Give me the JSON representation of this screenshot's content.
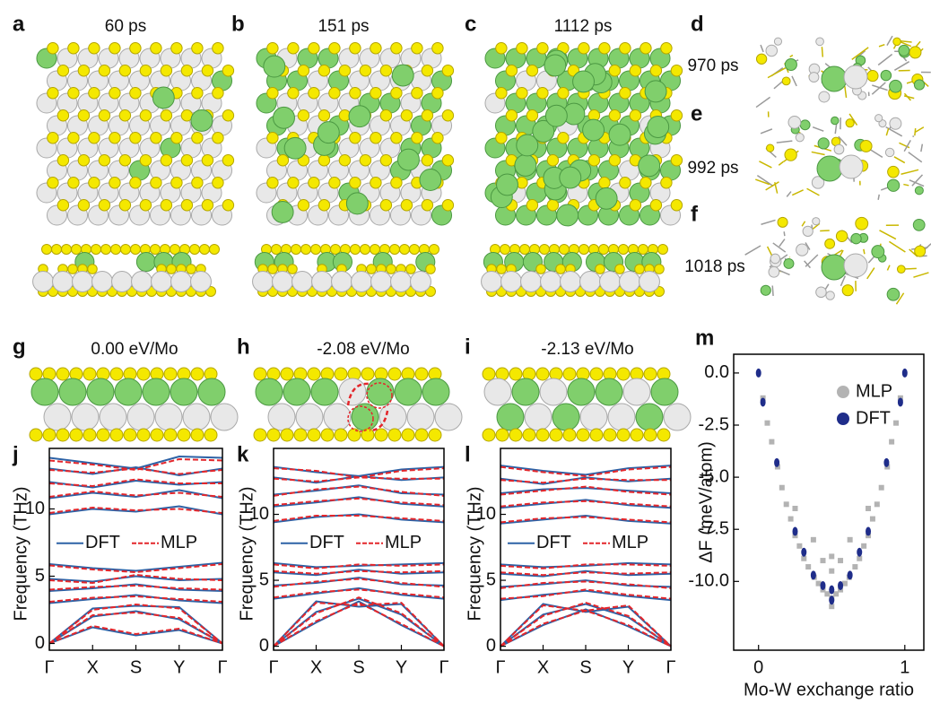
{
  "panels": [
    {
      "label": "a",
      "caption": "60 ps"
    },
    {
      "label": "b",
      "caption": "151 ps"
    },
    {
      "label": "c",
      "caption": "1112 ps"
    },
    {
      "label": "d",
      "caption": "970 ps"
    },
    {
      "label": "e",
      "caption": "992 ps"
    },
    {
      "label": "f",
      "caption": "1018 ps"
    },
    {
      "label": "g",
      "caption": "0.00 eV/Mo"
    },
    {
      "label": "h",
      "caption": "-2.08 eV/Mo"
    },
    {
      "label": "i",
      "caption": "-2.13 eV/Mo"
    },
    {
      "label": "j"
    },
    {
      "label": "k"
    },
    {
      "label": "l"
    },
    {
      "label": "m"
    }
  ],
  "chart_data": [
    {
      "type": "line",
      "ylabel": "Frequency (THz)",
      "x": [
        0,
        1,
        2,
        3,
        4
      ],
      "xlim": [
        0,
        4
      ],
      "xticks": [
        {
          "value": 0,
          "label": "Γ"
        },
        {
          "value": 1,
          "label": "X"
        },
        {
          "value": 2,
          "label": "S"
        },
        {
          "value": 3,
          "label": "Y"
        },
        {
          "value": 4,
          "label": "Γ"
        }
      ],
      "ylim": [
        -0.5,
        14.5
      ],
      "yticks": [
        0,
        5,
        10
      ],
      "series": [
        {
          "name": "DFT",
          "color": "#2d62a6",
          "line_style": "solid",
          "values": [
            [
              0,
              1.2,
              0.6,
              1.0,
              0
            ],
            [
              0,
              2.0,
              2.4,
              1.8,
              0
            ],
            [
              0,
              2.6,
              2.8,
              2.7,
              0
            ],
            [
              3.0,
              3.3,
              3.6,
              3.2,
              3.0
            ],
            [
              3.9,
              4.1,
              4.4,
              4.0,
              3.9
            ],
            [
              4.8,
              4.6,
              5.0,
              4.7,
              4.8
            ],
            [
              5.9,
              5.6,
              5.4,
              5.7,
              6.0
            ],
            [
              9.6,
              10.0,
              9.8,
              10.2,
              9.6
            ],
            [
              10.8,
              11.2,
              10.9,
              11.4,
              10.8
            ],
            [
              12.0,
              11.6,
              12.1,
              11.8,
              12.0
            ],
            [
              13.0,
              12.6,
              13.1,
              12.5,
              13.0
            ],
            [
              13.8,
              13.4,
              13.0,
              13.9,
              13.8
            ]
          ]
        },
        {
          "name": "MLP",
          "color": "#e3262b",
          "line_style": "dashed",
          "values": [
            [
              0,
              1.3,
              0.7,
              1.1,
              0
            ],
            [
              0,
              2.1,
              2.3,
              1.9,
              0
            ],
            [
              0,
              2.5,
              2.9,
              2.6,
              0
            ],
            [
              3.1,
              3.4,
              3.5,
              3.3,
              3.1
            ],
            [
              4.0,
              4.2,
              4.3,
              4.1,
              4.0
            ],
            [
              4.7,
              4.5,
              5.1,
              4.8,
              4.7
            ],
            [
              5.8,
              5.5,
              5.3,
              5.6,
              5.9
            ],
            [
              9.7,
              10.1,
              9.9,
              10.0,
              9.7
            ],
            [
              10.9,
              11.3,
              11.0,
              11.2,
              10.9
            ],
            [
              11.9,
              11.7,
              12.2,
              11.9,
              11.9
            ],
            [
              12.9,
              12.7,
              13.0,
              12.6,
              12.9
            ],
            [
              13.6,
              13.3,
              12.9,
              13.7,
              13.6
            ]
          ]
        }
      ]
    },
    {
      "type": "line",
      "ylabel": "Frequency (THz)",
      "x": [
        0,
        1,
        2,
        3,
        4
      ],
      "xlim": [
        0,
        4
      ],
      "xticks": [
        {
          "value": 0,
          "label": "Γ"
        },
        {
          "value": 1,
          "label": "X"
        },
        {
          "value": 2,
          "label": "S"
        },
        {
          "value": 3,
          "label": "Y"
        },
        {
          "value": 4,
          "label": "Γ"
        }
      ],
      "ylim": [
        -0.3,
        15
      ],
      "yticks": [
        0,
        5,
        10
      ],
      "series": [
        {
          "name": "DFT",
          "color": "#2d62a6",
          "line_style": "solid",
          "values": [
            [
              0,
              1.8,
              3.4,
              1.6,
              0
            ],
            [
              0,
              2.6,
              3.6,
              2.4,
              0
            ],
            [
              0,
              3.4,
              3.0,
              3.2,
              0
            ],
            [
              3.6,
              4.0,
              4.4,
              3.9,
              3.6
            ],
            [
              4.6,
              4.8,
              5.2,
              4.7,
              4.6
            ],
            [
              5.6,
              5.4,
              5.8,
              5.5,
              5.6
            ],
            [
              6.3,
              6.0,
              6.1,
              6.2,
              6.3
            ],
            [
              9.4,
              9.8,
              10.0,
              9.6,
              9.4
            ],
            [
              10.6,
              10.9,
              11.3,
              10.8,
              10.6
            ],
            [
              11.5,
              11.8,
              12.2,
              11.6,
              11.5
            ],
            [
              12.8,
              12.4,
              12.9,
              12.6,
              12.8
            ],
            [
              13.6,
              13.2,
              12.9,
              13.4,
              13.6
            ]
          ]
        },
        {
          "name": "MLP",
          "color": "#e3262b",
          "line_style": "dashed",
          "values": [
            [
              0,
              1.9,
              3.3,
              1.7,
              0
            ],
            [
              0,
              2.5,
              3.7,
              2.5,
              0
            ],
            [
              0,
              3.3,
              3.1,
              3.3,
              0
            ],
            [
              3.7,
              4.1,
              4.3,
              4.0,
              3.7
            ],
            [
              4.5,
              4.9,
              5.1,
              4.8,
              4.5
            ],
            [
              5.7,
              5.5,
              5.7,
              5.6,
              5.7
            ],
            [
              6.2,
              5.9,
              6.2,
              6.1,
              6.2
            ],
            [
              9.5,
              9.9,
              9.9,
              9.7,
              9.5
            ],
            [
              10.7,
              11.0,
              11.2,
              10.9,
              10.7
            ],
            [
              11.4,
              11.9,
              12.1,
              11.7,
              11.4
            ],
            [
              12.7,
              12.5,
              12.8,
              12.7,
              12.7
            ],
            [
              13.5,
              13.3,
              12.8,
              13.3,
              13.5
            ]
          ]
        }
      ]
    },
    {
      "type": "line",
      "ylabel": "Frequency (THz)",
      "x": [
        0,
        1,
        2,
        3,
        4
      ],
      "xlim": [
        0,
        4
      ],
      "xticks": [
        {
          "value": 0,
          "label": "Γ"
        },
        {
          "value": 1,
          "label": "X"
        },
        {
          "value": 2,
          "label": "S"
        },
        {
          "value": 3,
          "label": "Y"
        },
        {
          "value": 4,
          "label": "Γ"
        }
      ],
      "ylim": [
        -0.3,
        15
      ],
      "yticks": [
        0,
        5,
        10
      ],
      "series": [
        {
          "name": "DFT",
          "color": "#2d62a6",
          "line_style": "solid",
          "values": [
            [
              0,
              1.6,
              2.8,
              1.5,
              0
            ],
            [
              0,
              2.4,
              3.2,
              2.2,
              0
            ],
            [
              0,
              3.2,
              2.6,
              3.0,
              0
            ],
            [
              3.5,
              3.9,
              4.2,
              3.8,
              3.5
            ],
            [
              4.5,
              4.7,
              5.0,
              4.6,
              4.5
            ],
            [
              5.5,
              5.3,
              5.7,
              5.4,
              5.5
            ],
            [
              6.2,
              6.0,
              6.1,
              6.3,
              6.2
            ],
            [
              9.3,
              9.6,
              9.9,
              9.5,
              9.3
            ],
            [
              10.5,
              10.8,
              11.1,
              10.7,
              10.5
            ],
            [
              11.6,
              11.9,
              12.0,
              11.8,
              11.6
            ],
            [
              12.7,
              12.3,
              12.8,
              12.5,
              12.7
            ],
            [
              13.7,
              13.3,
              13.0,
              13.5,
              13.7
            ]
          ]
        },
        {
          "name": "MLP",
          "color": "#e3262b",
          "line_style": "dashed",
          "values": [
            [
              0,
              1.7,
              2.7,
              1.6,
              0
            ],
            [
              0,
              2.3,
              3.3,
              2.3,
              0
            ],
            [
              0,
              3.1,
              2.7,
              3.1,
              0
            ],
            [
              3.6,
              3.8,
              4.3,
              3.9,
              3.6
            ],
            [
              4.4,
              4.8,
              4.9,
              4.7,
              4.4
            ],
            [
              5.6,
              5.4,
              5.6,
              5.5,
              5.6
            ],
            [
              6.1,
              5.9,
              6.2,
              6.2,
              6.1
            ],
            [
              9.4,
              9.7,
              9.8,
              9.6,
              9.4
            ],
            [
              10.6,
              10.9,
              11.0,
              10.8,
              10.6
            ],
            [
              11.5,
              11.8,
              12.1,
              11.7,
              11.5
            ],
            [
              12.6,
              12.4,
              12.7,
              12.6,
              12.6
            ],
            [
              13.6,
              13.2,
              12.9,
              13.4,
              13.6
            ]
          ]
        }
      ]
    },
    {
      "type": "scatter",
      "xlabel": "Mo-W exchange ratio",
      "ylabel": "ΔF (meV/atom)",
      "xlim": [
        -0.17,
        1.13
      ],
      "xticks": [
        0,
        1
      ],
      "ylim": [
        -13.3,
        0.9
      ],
      "yticks": [
        {
          "value": 0,
          "label": "0.0"
        },
        -2.5,
        {
          "value": -5,
          "label": "-5.0"
        },
        -7.5,
        {
          "value": -10,
          "label": "-10.0"
        }
      ],
      "legend": "upper right",
      "series": [
        {
          "name": "MLP",
          "color": "#b3b3b3",
          "x": [
            0.03,
            0.06,
            0.09,
            0.13,
            0.16,
            0.19,
            0.22,
            0.25,
            0.28,
            0.31,
            0.34,
            0.38,
            0.41,
            0.44,
            0.47,
            0.5,
            0.53,
            0.56,
            0.59,
            0.62,
            0.66,
            0.69,
            0.72,
            0.75,
            0.78,
            0.81,
            0.84,
            0.88,
            0.91,
            0.94,
            0.97,
            0.25,
            0.375,
            0.5,
            0.625,
            0.75,
            0.5,
            0.44,
            0.56,
            0.5
          ],
          "values": [
            -1.2,
            -2.4,
            -3.3,
            -4.5,
            -5.5,
            -6.3,
            -7.0,
            -7.8,
            -8.3,
            -8.9,
            -9.3,
            -9.8,
            -10.1,
            -10.4,
            -10.6,
            -10.8,
            -10.6,
            -10.4,
            -10.1,
            -9.8,
            -9.3,
            -8.9,
            -8.3,
            -7.8,
            -7.0,
            -6.3,
            -5.5,
            -4.5,
            -3.3,
            -2.4,
            -1.2,
            -6.5,
            -8.0,
            -8.8,
            -8.0,
            -6.5,
            -9.5,
            -9.0,
            -9.0,
            -11.2
          ]
        },
        {
          "name": "DFT",
          "color": "#1f2d8a",
          "x": [
            0,
            1,
            0.03,
            0.97,
            0.125,
            0.875,
            0.25,
            0.75,
            0.375,
            0.625,
            0.5,
            0.5,
            0.44,
            0.56,
            0.31,
            0.69
          ],
          "values": [
            0,
            0,
            -1.4,
            -1.4,
            -4.3,
            -4.3,
            -7.6,
            -7.6,
            -9.7,
            -9.7,
            -10.4,
            -10.9,
            -10.2,
            -10.2,
            -8.6,
            -8.6
          ]
        }
      ]
    }
  ]
}
